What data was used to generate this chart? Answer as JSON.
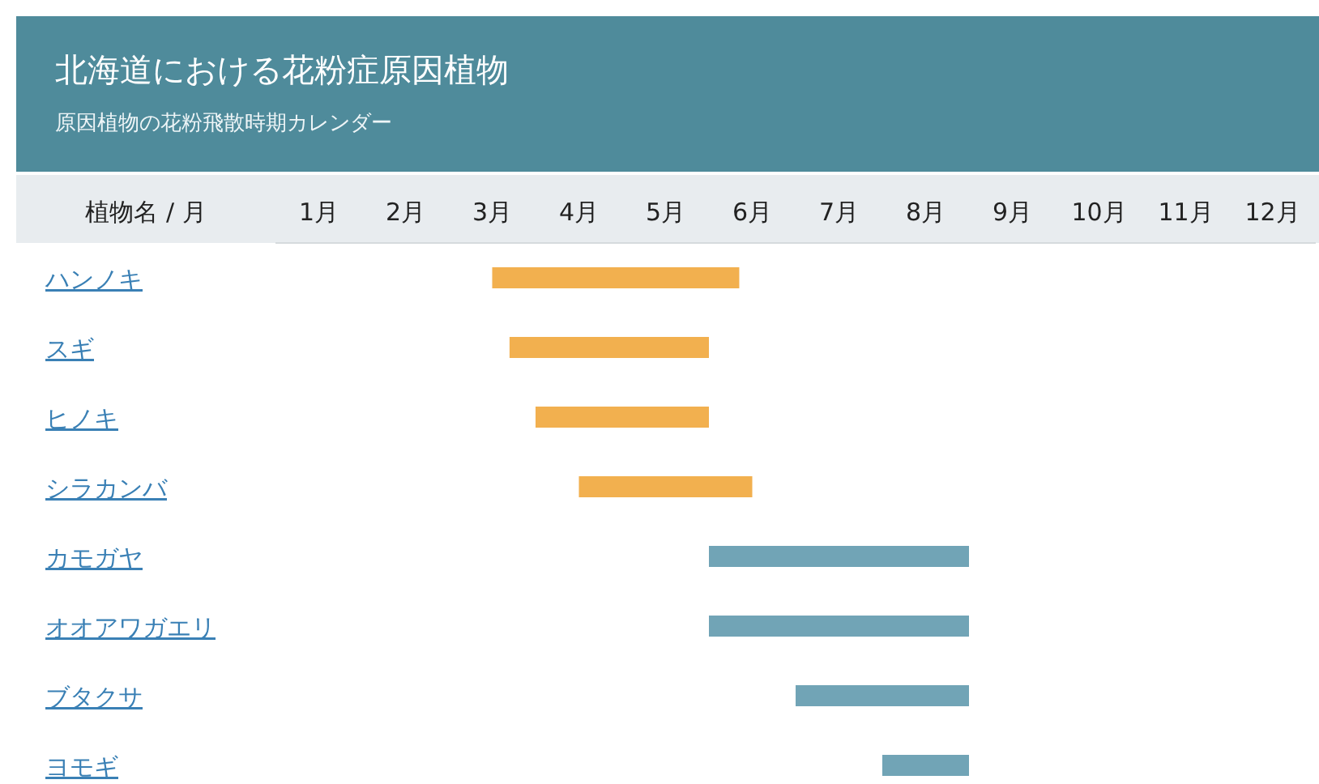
{
  "chart_data": {
    "type": "bar",
    "orientation": "horizontal",
    "title": "北海道における花粉症原因植物",
    "subtitle": "原因植物の花粉飛散時期カレンダー",
    "ylabel": "植物名 / 月",
    "categories": [
      "ハンノキ",
      "スギ",
      "ヒノキ",
      "シラカンバ",
      "カモガヤ",
      "オオアワガエリ",
      "ブタクサ",
      "ヨモギ"
    ],
    "base": [
      3.0,
      3.2,
      3.5,
      4.0,
      5.5,
      5.5,
      6.5,
      7.5
    ],
    "values": [
      2.85,
      2.3,
      2.0,
      2.0,
      3.0,
      3.0,
      2.0,
      1.0
    ],
    "colors": [
      "#f2b04f",
      "#f2b04f",
      "#f2b04f",
      "#f2b04f",
      "#71a4b6",
      "#71a4b6",
      "#71a4b6",
      "#71a4b6"
    ],
    "xlim": [
      0.5,
      12.5
    ],
    "xticks": [
      {
        "value": 1,
        "label": "1月"
      },
      {
        "value": 2,
        "label": "2月"
      },
      {
        "value": 3,
        "label": "3月"
      },
      {
        "value": 4,
        "label": "4月"
      },
      {
        "value": 5,
        "label": "5月"
      },
      {
        "value": 6,
        "label": "6月"
      },
      {
        "value": 7,
        "label": "7月"
      },
      {
        "value": 8,
        "label": "8月"
      },
      {
        "value": 9,
        "label": "9月"
      },
      {
        "value": 10,
        "label": "10月"
      },
      {
        "value": 11,
        "label": "11月"
      },
      {
        "value": 12,
        "label": "12月"
      }
    ],
    "grid": false
  }
}
